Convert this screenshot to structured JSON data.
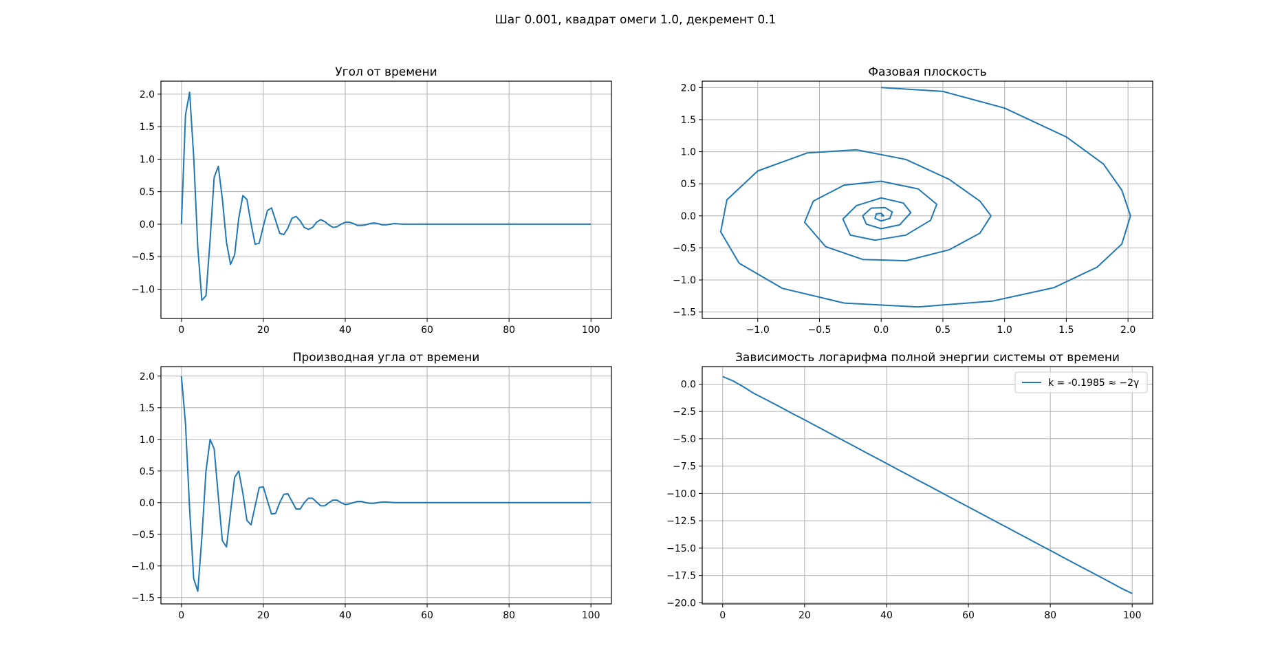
{
  "figure": {
    "suptitle": "Шаг 0.001, квадрат омеги 1.0, декремент 0.1"
  },
  "chart_data": [
    {
      "type": "line",
      "title": "Угол от времени",
      "xlabel": "",
      "ylabel": "",
      "xlim": [
        -5,
        105
      ],
      "ylim": [
        -1.45,
        2.2
      ],
      "xticks": [
        0,
        20,
        40,
        60,
        80,
        100
      ],
      "yticks": [
        -1.0,
        -0.5,
        0.0,
        0.5,
        1.0,
        1.5,
        2.0
      ],
      "xtick_labels": [
        "0",
        "20",
        "40",
        "60",
        "80",
        "100"
      ],
      "ytick_labels": [
        "−1.0",
        "−0.5",
        "0.0",
        "0.5",
        "1.0",
        "1.5",
        "2.0"
      ],
      "grid": true,
      "color": "#1f77b4",
      "series": [
        {
          "x": [
            0,
            1,
            2,
            3,
            4,
            5,
            6,
            7,
            8,
            9,
            10,
            11,
            12,
            13,
            14,
            15,
            16,
            17,
            18,
            19,
            20,
            21,
            22,
            23,
            24,
            25,
            26,
            27,
            28,
            29,
            30,
            31,
            32,
            33,
            34,
            35,
            36,
            37,
            38,
            39,
            40,
            41,
            42,
            43,
            44,
            45,
            46,
            47,
            48,
            49,
            50,
            52,
            54,
            56,
            58,
            60,
            65,
            70,
            75,
            80,
            85,
            90,
            95,
            100
          ],
          "y": [
            0.0,
            1.68,
            2.03,
            1.04,
            -0.36,
            -1.17,
            -1.1,
            -0.24,
            0.72,
            0.89,
            0.39,
            -0.28,
            -0.62,
            -0.47,
            0.09,
            0.44,
            0.38,
            0.01,
            -0.31,
            -0.29,
            -0.03,
            0.21,
            0.25,
            0.06,
            -0.14,
            -0.16,
            -0.06,
            0.09,
            0.12,
            0.05,
            -0.05,
            -0.08,
            -0.05,
            0.03,
            0.07,
            0.04,
            -0.01,
            -0.05,
            -0.04,
            0.0,
            0.03,
            0.03,
            0.01,
            -0.02,
            -0.02,
            -0.01,
            0.01,
            0.02,
            0.01,
            -0.01,
            -0.01,
            0.01,
            0.0,
            0.0,
            0.0,
            0.0,
            0.0,
            0.0,
            0.0,
            0.0,
            0.0,
            0.0,
            0.0,
            0.0
          ]
        }
      ]
    },
    {
      "type": "line",
      "title": "Фазовая плоскость",
      "xlabel": "",
      "ylabel": "",
      "xlim": [
        -1.45,
        2.2
      ],
      "ylim": [
        -1.6,
        2.1
      ],
      "xticks": [
        -1.0,
        -0.5,
        0.0,
        0.5,
        1.0,
        1.5,
        2.0
      ],
      "yticks": [
        -1.5,
        -1.0,
        -0.5,
        0.0,
        0.5,
        1.0,
        1.5,
        2.0
      ],
      "xtick_labels": [
        "−1.0",
        "−0.5",
        "0.0",
        "0.5",
        "1.0",
        "1.5",
        "2.0"
      ],
      "ytick_labels": [
        "−1.5",
        "−1.0",
        "−0.5",
        "0.0",
        "0.5",
        "1.0",
        "1.5",
        "2.0"
      ],
      "grid": true,
      "color": "#1f77b4",
      "series": [
        {
          "x": [
            0.0,
            0.5,
            1.0,
            1.5,
            1.8,
            1.95,
            2.02,
            1.95,
            1.75,
            1.4,
            0.9,
            0.3,
            -0.3,
            -0.8,
            -1.15,
            -1.3,
            -1.25,
            -1.0,
            -0.6,
            -0.2,
            0.2,
            0.55,
            0.8,
            0.89,
            0.8,
            0.55,
            0.2,
            -0.15,
            -0.45,
            -0.62,
            -0.55,
            -0.3,
            0.0,
            0.3,
            0.45,
            0.4,
            0.2,
            -0.05,
            -0.25,
            -0.31,
            -0.2,
            0.0,
            0.18,
            0.24,
            0.15,
            0.0,
            -0.12,
            -0.15,
            -0.08,
            0.03,
            0.09,
            0.07,
            0.0,
            -0.05,
            -0.04,
            0.0,
            0.02,
            0.0
          ],
          "y": [
            2.0,
            1.94,
            1.68,
            1.23,
            0.81,
            0.4,
            0.0,
            -0.44,
            -0.8,
            -1.12,
            -1.33,
            -1.42,
            -1.36,
            -1.13,
            -0.74,
            -0.25,
            0.25,
            0.7,
            0.98,
            1.03,
            0.88,
            0.57,
            0.23,
            0.0,
            -0.27,
            -0.53,
            -0.7,
            -0.68,
            -0.48,
            -0.1,
            0.23,
            0.48,
            0.54,
            0.42,
            0.18,
            -0.07,
            -0.3,
            -0.38,
            -0.3,
            -0.05,
            0.16,
            0.28,
            0.2,
            0.05,
            -0.14,
            -0.2,
            -0.13,
            0.0,
            0.12,
            0.13,
            0.06,
            -0.04,
            -0.08,
            -0.04,
            0.03,
            0.04,
            0.0,
            0.0
          ]
        }
      ]
    },
    {
      "type": "line",
      "title": "Производная угла от времени",
      "xlabel": "",
      "ylabel": "",
      "xlim": [
        -5,
        105
      ],
      "ylim": [
        -1.6,
        2.15
      ],
      "xticks": [
        0,
        20,
        40,
        60,
        80,
        100
      ],
      "yticks": [
        -1.5,
        -1.0,
        -0.5,
        0.0,
        0.5,
        1.0,
        1.5,
        2.0
      ],
      "xtick_labels": [
        "0",
        "20",
        "40",
        "60",
        "80",
        "100"
      ],
      "ytick_labels": [
        "−1.5",
        "−1.0",
        "−0.5",
        "0.0",
        "0.5",
        "1.0",
        "1.5",
        "2.0"
      ],
      "grid": true,
      "color": "#1f77b4",
      "series": [
        {
          "x": [
            0,
            1,
            2,
            3,
            4,
            5,
            6,
            7,
            8,
            9,
            10,
            11,
            12,
            13,
            14,
            15,
            16,
            17,
            18,
            19,
            20,
            21,
            22,
            23,
            24,
            25,
            26,
            27,
            28,
            29,
            30,
            31,
            32,
            33,
            34,
            35,
            36,
            37,
            38,
            39,
            40,
            41,
            42,
            43,
            44,
            45,
            46,
            47,
            48,
            49,
            50,
            52,
            54,
            56,
            58,
            60,
            65,
            70,
            75,
            80,
            85,
            90,
            95,
            100
          ],
          "y": [
            2.0,
            1.25,
            -0.1,
            -1.2,
            -1.4,
            -0.55,
            0.5,
            1.0,
            0.85,
            0.1,
            -0.6,
            -0.7,
            -0.15,
            0.4,
            0.5,
            0.15,
            -0.28,
            -0.35,
            -0.05,
            0.24,
            0.25,
            0.03,
            -0.18,
            -0.17,
            0.0,
            0.13,
            0.14,
            0.02,
            -0.1,
            -0.1,
            0.0,
            0.07,
            0.07,
            0.01,
            -0.05,
            -0.05,
            0.0,
            0.04,
            0.04,
            0.0,
            -0.03,
            -0.02,
            0.0,
            0.02,
            0.02,
            0.0,
            -0.01,
            -0.01,
            0.0,
            0.01,
            0.01,
            0.0,
            0.0,
            0.0,
            0.0,
            0.0,
            0.0,
            0.0,
            0.0,
            0.0,
            0.0,
            0.0,
            0.0,
            0.0
          ]
        }
      ]
    },
    {
      "type": "line",
      "title": "Зависимость логарифма полной энергии системы от времени",
      "xlabel": "",
      "ylabel": "",
      "xlim": [
        -5,
        105
      ],
      "ylim": [
        -20.1,
        1.6
      ],
      "xticks": [
        0,
        20,
        40,
        60,
        80,
        100
      ],
      "yticks": [
        -20.0,
        -17.5,
        -15.0,
        -12.5,
        -10.0,
        -7.5,
        -5.0,
        -2.5,
        0.0
      ],
      "xtick_labels": [
        "0",
        "20",
        "40",
        "60",
        "80",
        "100"
      ],
      "ytick_labels": [
        "−20.0",
        "−17.5",
        "−15.0",
        "−12.5",
        "−10.0",
        "−7.5",
        "−5.0",
        "−2.5",
        "0.0"
      ],
      "grid": true,
      "legend": "top-right",
      "color": "#1f77b4",
      "slope": -0.1985,
      "series": [
        {
          "name": "k = -0.1985 ≈ −2γ",
          "x": [
            0,
            2.5,
            5,
            7.5,
            10,
            12.5,
            15,
            17.5,
            20,
            22.5,
            25,
            27.5,
            30,
            32.5,
            35,
            37.5,
            40,
            42.5,
            45,
            47.5,
            50,
            52.5,
            55,
            57.5,
            60,
            62.5,
            65,
            67.5,
            70,
            72.5,
            75,
            77.5,
            80,
            82.5,
            85,
            87.5,
            90,
            92.5,
            95,
            97.5,
            100
          ],
          "y": [
            0.69,
            0.3,
            -0.23,
            -0.82,
            -1.3,
            -1.79,
            -2.29,
            -2.79,
            -3.27,
            -3.77,
            -4.27,
            -4.77,
            -5.26,
            -5.76,
            -6.26,
            -6.76,
            -7.25,
            -7.75,
            -8.25,
            -8.75,
            -9.24,
            -9.74,
            -10.24,
            -10.74,
            -11.23,
            -11.73,
            -12.23,
            -12.73,
            -13.22,
            -13.72,
            -14.22,
            -14.72,
            -15.21,
            -15.71,
            -16.21,
            -16.71,
            -17.2,
            -17.7,
            -18.2,
            -18.7,
            -19.15
          ]
        }
      ]
    }
  ]
}
